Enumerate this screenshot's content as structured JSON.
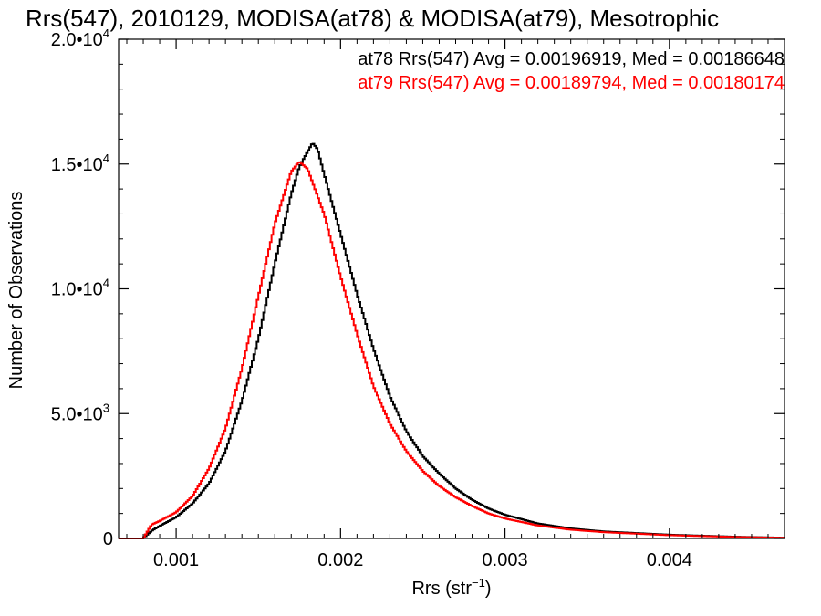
{
  "chart_data": {
    "type": "line",
    "title": "Rrs(547), 2010129, MODISA(at78) & MODISA(at79), Mesotrophic",
    "xlabel": "Rrs (str",
    "xlabel_sup": "−1",
    "xlabel_end": ")",
    "ylabel": "Number of Observations",
    "xlim": [
      0.00065,
      0.0047
    ],
    "ylim": [
      0,
      20000
    ],
    "grid": false,
    "legend_position": "top-right",
    "x_ticks": [
      {
        "value": 0.001,
        "label": "0.001"
      },
      {
        "value": 0.002,
        "label": "0.002"
      },
      {
        "value": 0.003,
        "label": "0.003"
      },
      {
        "value": 0.004,
        "label": "0.004"
      }
    ],
    "y_ticks": [
      {
        "value": 0,
        "mant": "0",
        "exp": ""
      },
      {
        "value": 5000,
        "mant": "5.0•10",
        "exp": "3"
      },
      {
        "value": 10000,
        "mant": "1.0•10",
        "exp": "4"
      },
      {
        "value": 15000,
        "mant": "1.5•10",
        "exp": "4"
      },
      {
        "value": 20000,
        "mant": "2.0•10",
        "exp": "4"
      }
    ],
    "annotations": [
      {
        "text": "at78 Rrs(547) Avg = 0.00196919, Med = 0.00186648",
        "color": "#000000"
      },
      {
        "text": "at79 Rrs(547) Avg = 0.00189794, Med = 0.00180174",
        "color": "#ff0000"
      }
    ],
    "series": [
      {
        "color": "#000000",
        "points": [
          [
            0.00065,
            0
          ],
          [
            0.0008,
            0
          ],
          [
            0.00085,
            300
          ],
          [
            0.0009,
            500
          ],
          [
            0.001,
            850
          ],
          [
            0.0011,
            1400
          ],
          [
            0.0012,
            2200
          ],
          [
            0.0013,
            3500
          ],
          [
            0.0014,
            5500
          ],
          [
            0.0015,
            8000
          ],
          [
            0.0016,
            11000
          ],
          [
            0.0017,
            13800
          ],
          [
            0.00175,
            14900
          ],
          [
            0.0018,
            15500
          ],
          [
            0.00183,
            15850
          ],
          [
            0.00186,
            15600
          ],
          [
            0.0019,
            14600
          ],
          [
            0.002,
            12200
          ],
          [
            0.0021,
            9800
          ],
          [
            0.0022,
            7600
          ],
          [
            0.0023,
            5700
          ],
          [
            0.0024,
            4300
          ],
          [
            0.0025,
            3300
          ],
          [
            0.0026,
            2600
          ],
          [
            0.0027,
            2000
          ],
          [
            0.0028,
            1550
          ],
          [
            0.0029,
            1200
          ],
          [
            0.003,
            950
          ],
          [
            0.0032,
            600
          ],
          [
            0.0034,
            400
          ],
          [
            0.0036,
            280
          ],
          [
            0.004,
            150
          ],
          [
            0.0044,
            70
          ],
          [
            0.0047,
            30
          ]
        ]
      },
      {
        "color": "#ff0000",
        "points": [
          [
            0.00065,
            0
          ],
          [
            0.0008,
            0
          ],
          [
            0.00085,
            550
          ],
          [
            0.0009,
            700
          ],
          [
            0.001,
            1050
          ],
          [
            0.0011,
            1700
          ],
          [
            0.0012,
            2800
          ],
          [
            0.0013,
            4400
          ],
          [
            0.0014,
            6800
          ],
          [
            0.0015,
            9700
          ],
          [
            0.0016,
            12600
          ],
          [
            0.0017,
            14700
          ],
          [
            0.00175,
            15100
          ],
          [
            0.0018,
            14800
          ],
          [
            0.0019,
            13000
          ],
          [
            0.002,
            10500
          ],
          [
            0.0021,
            8200
          ],
          [
            0.0022,
            6100
          ],
          [
            0.0023,
            4600
          ],
          [
            0.0024,
            3500
          ],
          [
            0.0025,
            2700
          ],
          [
            0.0026,
            2100
          ],
          [
            0.0027,
            1650
          ],
          [
            0.0028,
            1300
          ],
          [
            0.0029,
            1000
          ],
          [
            0.003,
            800
          ],
          [
            0.0032,
            520
          ],
          [
            0.0034,
            350
          ],
          [
            0.0036,
            250
          ],
          [
            0.004,
            130
          ],
          [
            0.0044,
            60
          ],
          [
            0.0047,
            25
          ]
        ]
      }
    ]
  }
}
